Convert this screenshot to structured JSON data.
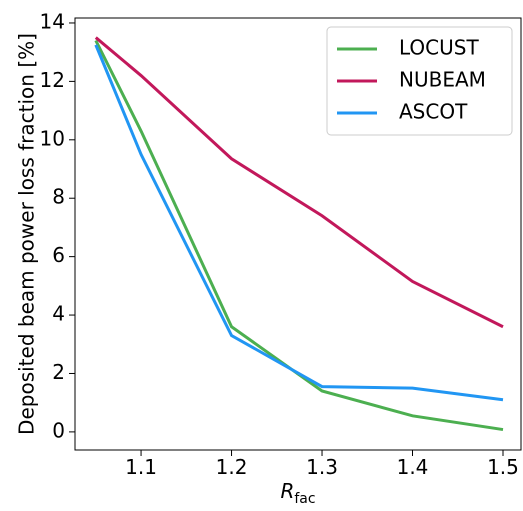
{
  "chart_data": {
    "type": "line",
    "xlabel": "R",
    "xlabel_sub": "fac",
    "ylabel": "Deposited beam power loss fraction [%]",
    "x": [
      1.05,
      1.1,
      1.2,
      1.3,
      1.4,
      1.5
    ],
    "series": [
      {
        "name": "LOCUST",
        "color": "#4caf50",
        "values": [
          13.4,
          10.3,
          3.6,
          1.4,
          0.55,
          0.08
        ]
      },
      {
        "name": "NUBEAM",
        "color": "#c2185b",
        "values": [
          13.5,
          12.2,
          9.35,
          7.4,
          5.15,
          3.6
        ]
      },
      {
        "name": "ASCOT",
        "color": "#2196f3",
        "values": [
          13.25,
          9.5,
          3.3,
          1.55,
          1.5,
          1.1
        ]
      }
    ],
    "xlim": [
      1.027,
      1.521
    ],
    "xticks": [
      1.1,
      1.2,
      1.3,
      1.4,
      1.5
    ],
    "ylim": [
      -0.62,
      14.17
    ],
    "yticks": [
      0,
      2,
      4,
      6,
      8,
      10,
      12,
      14
    ],
    "grid": false,
    "legend": "upper right"
  }
}
